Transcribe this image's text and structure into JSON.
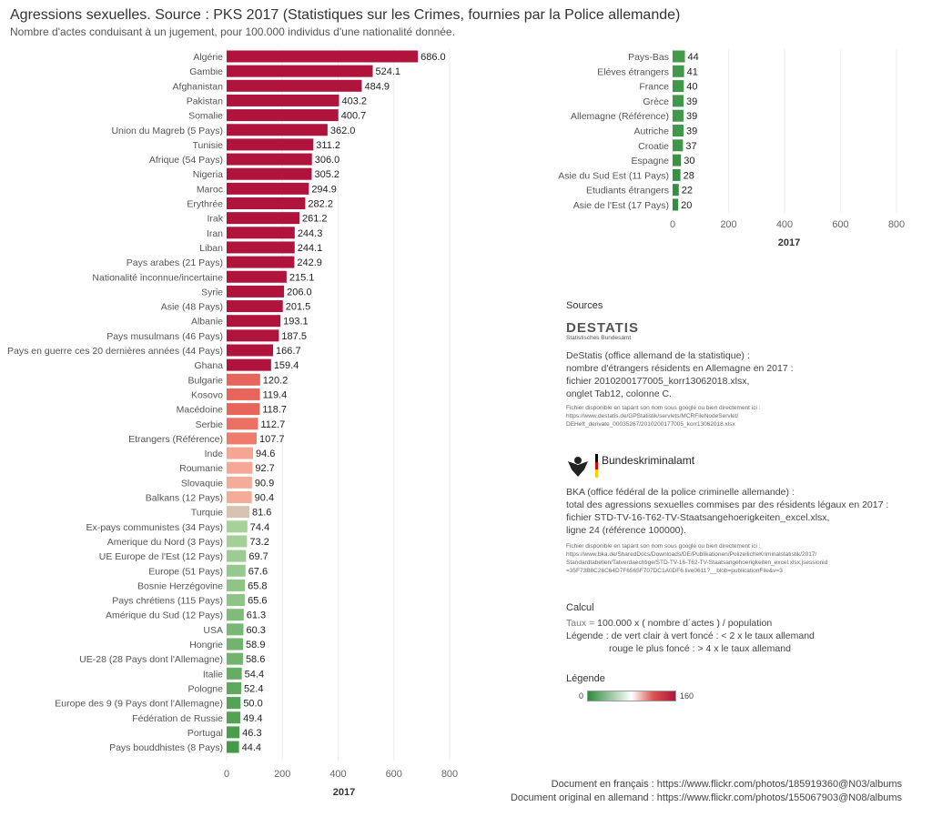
{
  "header": {
    "title": "Agressions sexuelles. Source : PKS 2017 (Statistiques sur les Crimes, fournies par la Police allemande)",
    "subtitle": "Nombre d'actes conduisant à un jugement, pour 100.000 individus d'une nationalité donnée."
  },
  "chart_data": [
    {
      "type": "bar",
      "orientation": "horizontal",
      "xlabel": "2017",
      "xlim": [
        0,
        800
      ],
      "xticks": [
        0,
        200,
        400,
        600,
        800
      ],
      "categories": [
        "Algérie",
        "Gambie",
        "Afghanistan",
        "Pakistan",
        "Somalie",
        "Union du Magreb (5 Pays)",
        "Tunisie",
        "Afrique (54 Pays)",
        "Nigeria",
        "Maroc",
        "Erythrée",
        "Irak",
        "Iran",
        "Liban",
        "Pays arabes (21 Pays)",
        "Nationalité inconnue/incertaine",
        "Syrie",
        "Asie (48 Pays)",
        "Albanie",
        "Pays musulmans (46 Pays)",
        "Pays en guerre ces 20 dernières années (44 Pays)",
        "Ghana",
        "Bulgarie",
        "Kosovo",
        "Macédoine",
        "Serbie",
        "Etrangers (Référence)",
        "Inde",
        "Roumanie",
        "Slovaquie",
        "Balkans (12 Pays)",
        "Turquie",
        "Ex-pays communistes (34 Pays)",
        "Amerique du Nord (3 Pays)",
        "UE Europe de l'Est (12 Pays)",
        "Europe (51 Pays)",
        "Bosnie Herzégovine",
        "Pays chrétiens (115 Pays)",
        "Amérique du Sud (12 Pays)",
        "USA",
        "Hongrie",
        "UE-28 (28 Pays dont l'Allemagne)",
        "Italie",
        "Pologne",
        "Europe des 9 (9 Pays dont l'Allemagne)",
        "Fédération de Russie",
        "Portugal",
        "Pays bouddhistes (8 Pays)"
      ],
      "values": [
        686.0,
        524.1,
        484.9,
        403.2,
        400.7,
        362.0,
        311.2,
        306.0,
        305.2,
        294.9,
        282.2,
        261.2,
        244.3,
        244.1,
        242.9,
        215.1,
        206.0,
        201.5,
        193.1,
        187.5,
        166.7,
        159.4,
        120.2,
        119.4,
        118.7,
        112.7,
        107.7,
        94.6,
        92.7,
        90.9,
        90.4,
        81.6,
        74.4,
        73.2,
        69.7,
        67.6,
        65.8,
        65.6,
        61.3,
        60.3,
        58.9,
        58.6,
        54.4,
        52.4,
        50.0,
        49.4,
        46.3,
        44.4
      ],
      "labels": [
        "686.0",
        "524.1",
        "484.9",
        "403.2",
        "400.7",
        "362.0",
        "311.2",
        "306.0",
        "305.2",
        "294.9",
        "282.2",
        "261.2",
        "244.3",
        "244.1",
        "242.9",
        "215.1",
        "206.0",
        "201.5",
        "193.1",
        "187.5",
        "166.7",
        "159.4",
        "120.2",
        "119.4",
        "118.7",
        "112.7",
        "107.7",
        "94.6",
        "92.7",
        "90.9",
        "90.4",
        "81.6",
        "74.4",
        "73.2",
        "69.7",
        "67.6",
        "65.8",
        "65.6",
        "61.3",
        "60.3",
        "58.9",
        "58.6",
        "54.4",
        "52.4",
        "50.0",
        "49.4",
        "46.3",
        "44.4"
      ],
      "colors": [
        "#b0143d",
        "#b0143d",
        "#b0143d",
        "#b0143d",
        "#b0143d",
        "#b0143d",
        "#b0143d",
        "#b0143d",
        "#b0143d",
        "#b0143d",
        "#b0143d",
        "#b0143d",
        "#b0143d",
        "#b0143d",
        "#b0143d",
        "#b0143d",
        "#b0143d",
        "#b0143d",
        "#b0143d",
        "#b0143d",
        "#b0143d",
        "#b0143d",
        "#e8655c",
        "#e8655c",
        "#e8655c",
        "#eb7164",
        "#ee7b6c",
        "#f5a592",
        "#f5a896",
        "#f5ab99",
        "#f5ab99",
        "#d7c3b1",
        "#a6d29a",
        "#a4d098",
        "#9ccc91",
        "#96c98c",
        "#8ec485",
        "#8ec485",
        "#7fbc78",
        "#79b874",
        "#72b46d",
        "#72b46d",
        "#64ad62",
        "#5ea95d",
        "#54a455",
        "#52a254",
        "#4a9d4d",
        "#459a49"
      ]
    },
    {
      "type": "bar",
      "orientation": "horizontal",
      "xlabel": "2017",
      "xlim": [
        0,
        800
      ],
      "xticks": [
        0,
        200,
        400,
        600,
        800
      ],
      "categories": [
        "Pays-Bas",
        "Eléves étrangers",
        "France",
        "Grèce",
        "Allemagne (Référence)",
        "Autriche",
        "Croatie",
        "Espagne",
        "Asie du Sud Est (11 Pays)",
        "Etudiants étrangers",
        "Asie de l'Est (17 Pays)"
      ],
      "values": [
        44,
        41,
        40,
        39,
        39,
        39,
        37,
        30,
        28,
        22,
        20
      ],
      "labels": [
        "44",
        "41",
        "40",
        "39",
        "39",
        "39",
        "37",
        "30",
        "28",
        "22",
        "20"
      ],
      "colors": [
        "#459a49",
        "#43984a",
        "#42984a",
        "#41974a",
        "#41974a",
        "#41974a",
        "#3f9648",
        "#3a9345",
        "#389244",
        "#348f40",
        "#338e40"
      ]
    }
  ],
  "sources": {
    "heading": "Sources",
    "destatis_logo": "DESTATIS",
    "destatis_logo_sub": "Statistisches Bundesamt",
    "destatis_lines": [
      "DeStatis (office allemand de la statistique) :",
      "nombre d'étrangers résidents en Allemagne en 2017 :",
      "fichier 2010200177005_korr13062018.xlsx,",
      "onglet Tab12, colonne C."
    ],
    "destatis_small": [
      "Fichier disponible en tapant son nom sous google ou bien directement ici :",
      "https://www.destatis.de/GPStatistik/servlets/MCRFileNodeServlet/",
      "DEHeft_derivate_00035267/2010200177005_korr13062018.xlsx"
    ],
    "bka_logo": "Bundeskriminalamt",
    "bka_lines": [
      "BKA (office fédéral de la police criminelle allemande) :",
      "total des agressions sexuelles commises par des résidents légaux en 2017 :",
      "fichier STD-TV-16-T62-TV-Staatsangehoerigkeiten_excel.xlsx,",
      "ligne 24 (référence 100000)."
    ],
    "bka_small": [
      "Fichier disponible en tapant son nom sous google ou bien directement ici :",
      "https://www.bka.de/SharedDocs/Downloads/DE/Publikationen/PolizeilicheKriminalstatistik/2017/",
      "Standardtabellen/Tatverdaechtige/STD-TV-16-T62-TV-Staatsangehoerigkeiten_excel.xlsx;jsessionid",
      "=35F73B8C26C64D7F6565F707DC1A0DF6.live0611?__blob=publicationFile&v=3"
    ]
  },
  "calcul": {
    "heading": "Calcul",
    "formula_prefix": "Taux = ",
    "formula_main": "100.000 x ( nombre d´actes ) / population",
    "legend_line1": "Légende : de vert clair à vert foncé : < 2 x le taux allemand",
    "legend_line2": "rouge le plus foncé : > 4 x le taux allemand"
  },
  "legend": {
    "heading": "Légende",
    "min_label": "0",
    "max_label": "160",
    "colors": [
      "#2e8b3d",
      "#ffffff",
      "#d9534f",
      "#b0143d"
    ]
  },
  "footer": {
    "line1": "Document en français : https://www.flickr.com/photos/185919360@N03/albums",
    "line2": "Document original en allemand : https://www.flickr.com/photos/155067903@N08/albums"
  }
}
